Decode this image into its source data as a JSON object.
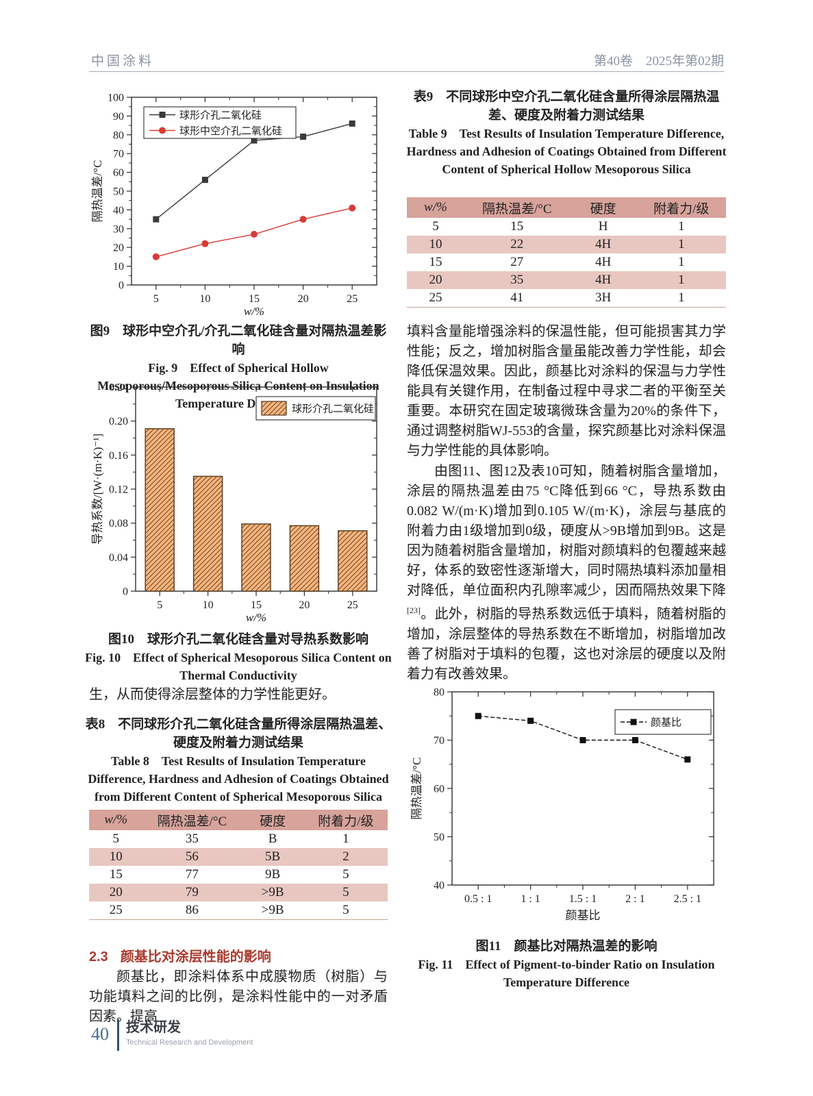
{
  "header": {
    "journal": "中国涂料",
    "issue": "第40卷 2025年第02期"
  },
  "left": {
    "fig9_caption_zh": "图9 球形中空介孔/介孔二氧化硅含量对隔热温差影响",
    "fig9_caption_en": "Fig. 9 Effect of Spherical Hollow Mesoporous/Mesoporous Silica Content on Insulation Temperature Difference",
    "fig10_caption_zh": "图10 球形介孔二氧化硅含量对导热系数影响",
    "fig10_caption_en": "Fig. 10 Effect of Spherical Mesoporous Silica Content on Thermal Conductivity",
    "para_continue": "生，从而使得涂层整体的力学性能更好。",
    "table8_title_zh": "表8 不同球形介孔二氧化硅含量所得涂层隔热温差、硬度及附着力测试结果",
    "table8_title_en": "Table 8 Test Results of Insulation Temperature Difference, Hardness and Adhesion of Coatings Obtained from Different Content of Spherical Mesoporous Silica",
    "section_no": "2.3",
    "section_title": "颜基比对涂层性能的影响",
    "section_para": "颜基比，即涂料体系中成膜物质（树脂）与功能填料之间的比例，是涂料性能中的一对矛盾因素。提高"
  },
  "right": {
    "table9_title_zh": "表9 不同球形中空介孔二氧化硅含量所得涂层隔热温差、硬度及附着力测试结果",
    "table9_title_en": "Table 9 Test Results of Insulation Temperature Difference, Hardness and Adhesion of Coatings Obtained from Different Content of Spherical Hollow Mesoporous Silica",
    "para1": "填料含量能增强涂料的保温性能，但可能损害其力学性能；反之，增加树脂含量虽能改善力学性能，却会降低保温效果。因此，颜基比对涂料的保温与力学性能具有关键作用，在制备过程中寻求二者的平衡至关重要。本研究在固定玻璃微珠含量为20%的条件下，通过调整树脂WJ-553的含量，探究颜基比对涂料保温与力学性能的具体影响。",
    "para2_pre": "由图11、图12及表10可知，随着树脂含量增加，涂层的隔热温差由75 °C降低到66 °C，导热系数由0.082 W/(m·K)增加到0.105 W/(m·K)，涂层与基底的附着力由1级增加到0级，硬度从>9B增加到9B。这是因为随着树脂含量增加，树脂对颜填料的包覆越来越好，体系的致密性逐渐增大，同时隔热填料添加量相对降低，单位面积内孔隙率减少，因而隔热效果下降",
    "para2_sup": "[23]",
    "para2_post": "。此外，树脂的导热系数远低于填料，随着树脂的增加，涂层整体的导热系数在不断增加，树脂增加改善了树脂对于填料的包覆，这也对涂层的硬度以及附着力有改善效果。",
    "fig11_caption_zh": "图11 颜基比对隔热温差的影响",
    "fig11_caption_en": "Fig. 11 Effect of Pigment-to-binder Ratio on Insulation Temperature Difference"
  },
  "tables": {
    "table8": {
      "headers": [
        "w/%",
        "隔热温差/°C",
        "硬度",
        "附着力/级"
      ],
      "rows": [
        [
          "5",
          "35",
          "B",
          "1"
        ],
        [
          "10",
          "56",
          "5B",
          "2"
        ],
        [
          "15",
          "77",
          "9B",
          "5"
        ],
        [
          "20",
          "79",
          ">9B",
          "5"
        ],
        [
          "25",
          "86",
          ">9B",
          "5"
        ]
      ],
      "shaded_rows": [
        1,
        3
      ]
    },
    "table9": {
      "headers": [
        "w/%",
        "隔热温差/°C",
        "硬度",
        "附着力/级"
      ],
      "rows": [
        [
          "5",
          "15",
          "H",
          "1"
        ],
        [
          "10",
          "22",
          "4H",
          "1"
        ],
        [
          "15",
          "27",
          "4H",
          "1"
        ],
        [
          "20",
          "35",
          "4H",
          "1"
        ],
        [
          "25",
          "41",
          "3H",
          "1"
        ]
      ],
      "shaded_rows": [
        1,
        3
      ]
    }
  },
  "footer": {
    "page": "40",
    "section": "技术研发",
    "section_en": "Technical Research and Development"
  },
  "colors": {
    "table_header_bg": "#d7a39b",
    "table_row_shade": "#e9c7c1",
    "accent_red": "#a93a2e",
    "axis": "#2f2f2f"
  },
  "chart_data": [
    {
      "id": "fig9",
      "type": "line",
      "categories": [
        "5",
        "10",
        "15",
        "20",
        "25"
      ],
      "series": [
        {
          "name": "球形介孔二氧化硅",
          "marker": "square",
          "color": "#3a3a3a",
          "dashed": false,
          "values": [
            35,
            56,
            77,
            79,
            86
          ]
        },
        {
          "name": "球形中空介孔二氧化硅",
          "marker": "circle",
          "color": "#d93a36",
          "dashed": false,
          "values": [
            15,
            22,
            27,
            35,
            41
          ]
        }
      ],
      "xlabel": "w/%",
      "xlabel_italic": true,
      "ylabel": "隔热温差/°C",
      "ylim": [
        0,
        100
      ],
      "ytick": 10,
      "grid": false,
      "legend_position": "top-left"
    },
    {
      "id": "fig10",
      "type": "bar",
      "categories": [
        "5",
        "10",
        "15",
        "20",
        "25"
      ],
      "values": [
        0.191,
        0.135,
        0.079,
        0.077,
        0.071
      ],
      "series_name": "球形介孔二氧化硅",
      "bar_fill": "#f5b57f",
      "bar_hatch": "#7a4a20",
      "bar_border": "#54381c",
      "xlabel": "w/%",
      "xlabel_italic": true,
      "ylabel": "导热系数/[W·(m·K)⁻¹]",
      "ylim": [
        0,
        0.24
      ],
      "ytick": 0.04,
      "grid": false,
      "legend_position": "top-right"
    },
    {
      "id": "fig11",
      "type": "line",
      "categories": [
        "0.5 : 1",
        "1 : 1",
        "1.5 : 1",
        "2 : 1",
        "2.5 : 1"
      ],
      "series": [
        {
          "name": "颜基比",
          "marker": "square",
          "color": "#111111",
          "dashed": true,
          "values": [
            75,
            74,
            70,
            70,
            66
          ]
        }
      ],
      "xlabel": "颜基比",
      "xlabel_italic": false,
      "ylabel": "隔热温差/°C",
      "ylim": [
        40,
        80
      ],
      "ytick": 10,
      "grid": false,
      "legend_position": "top-right"
    }
  ]
}
